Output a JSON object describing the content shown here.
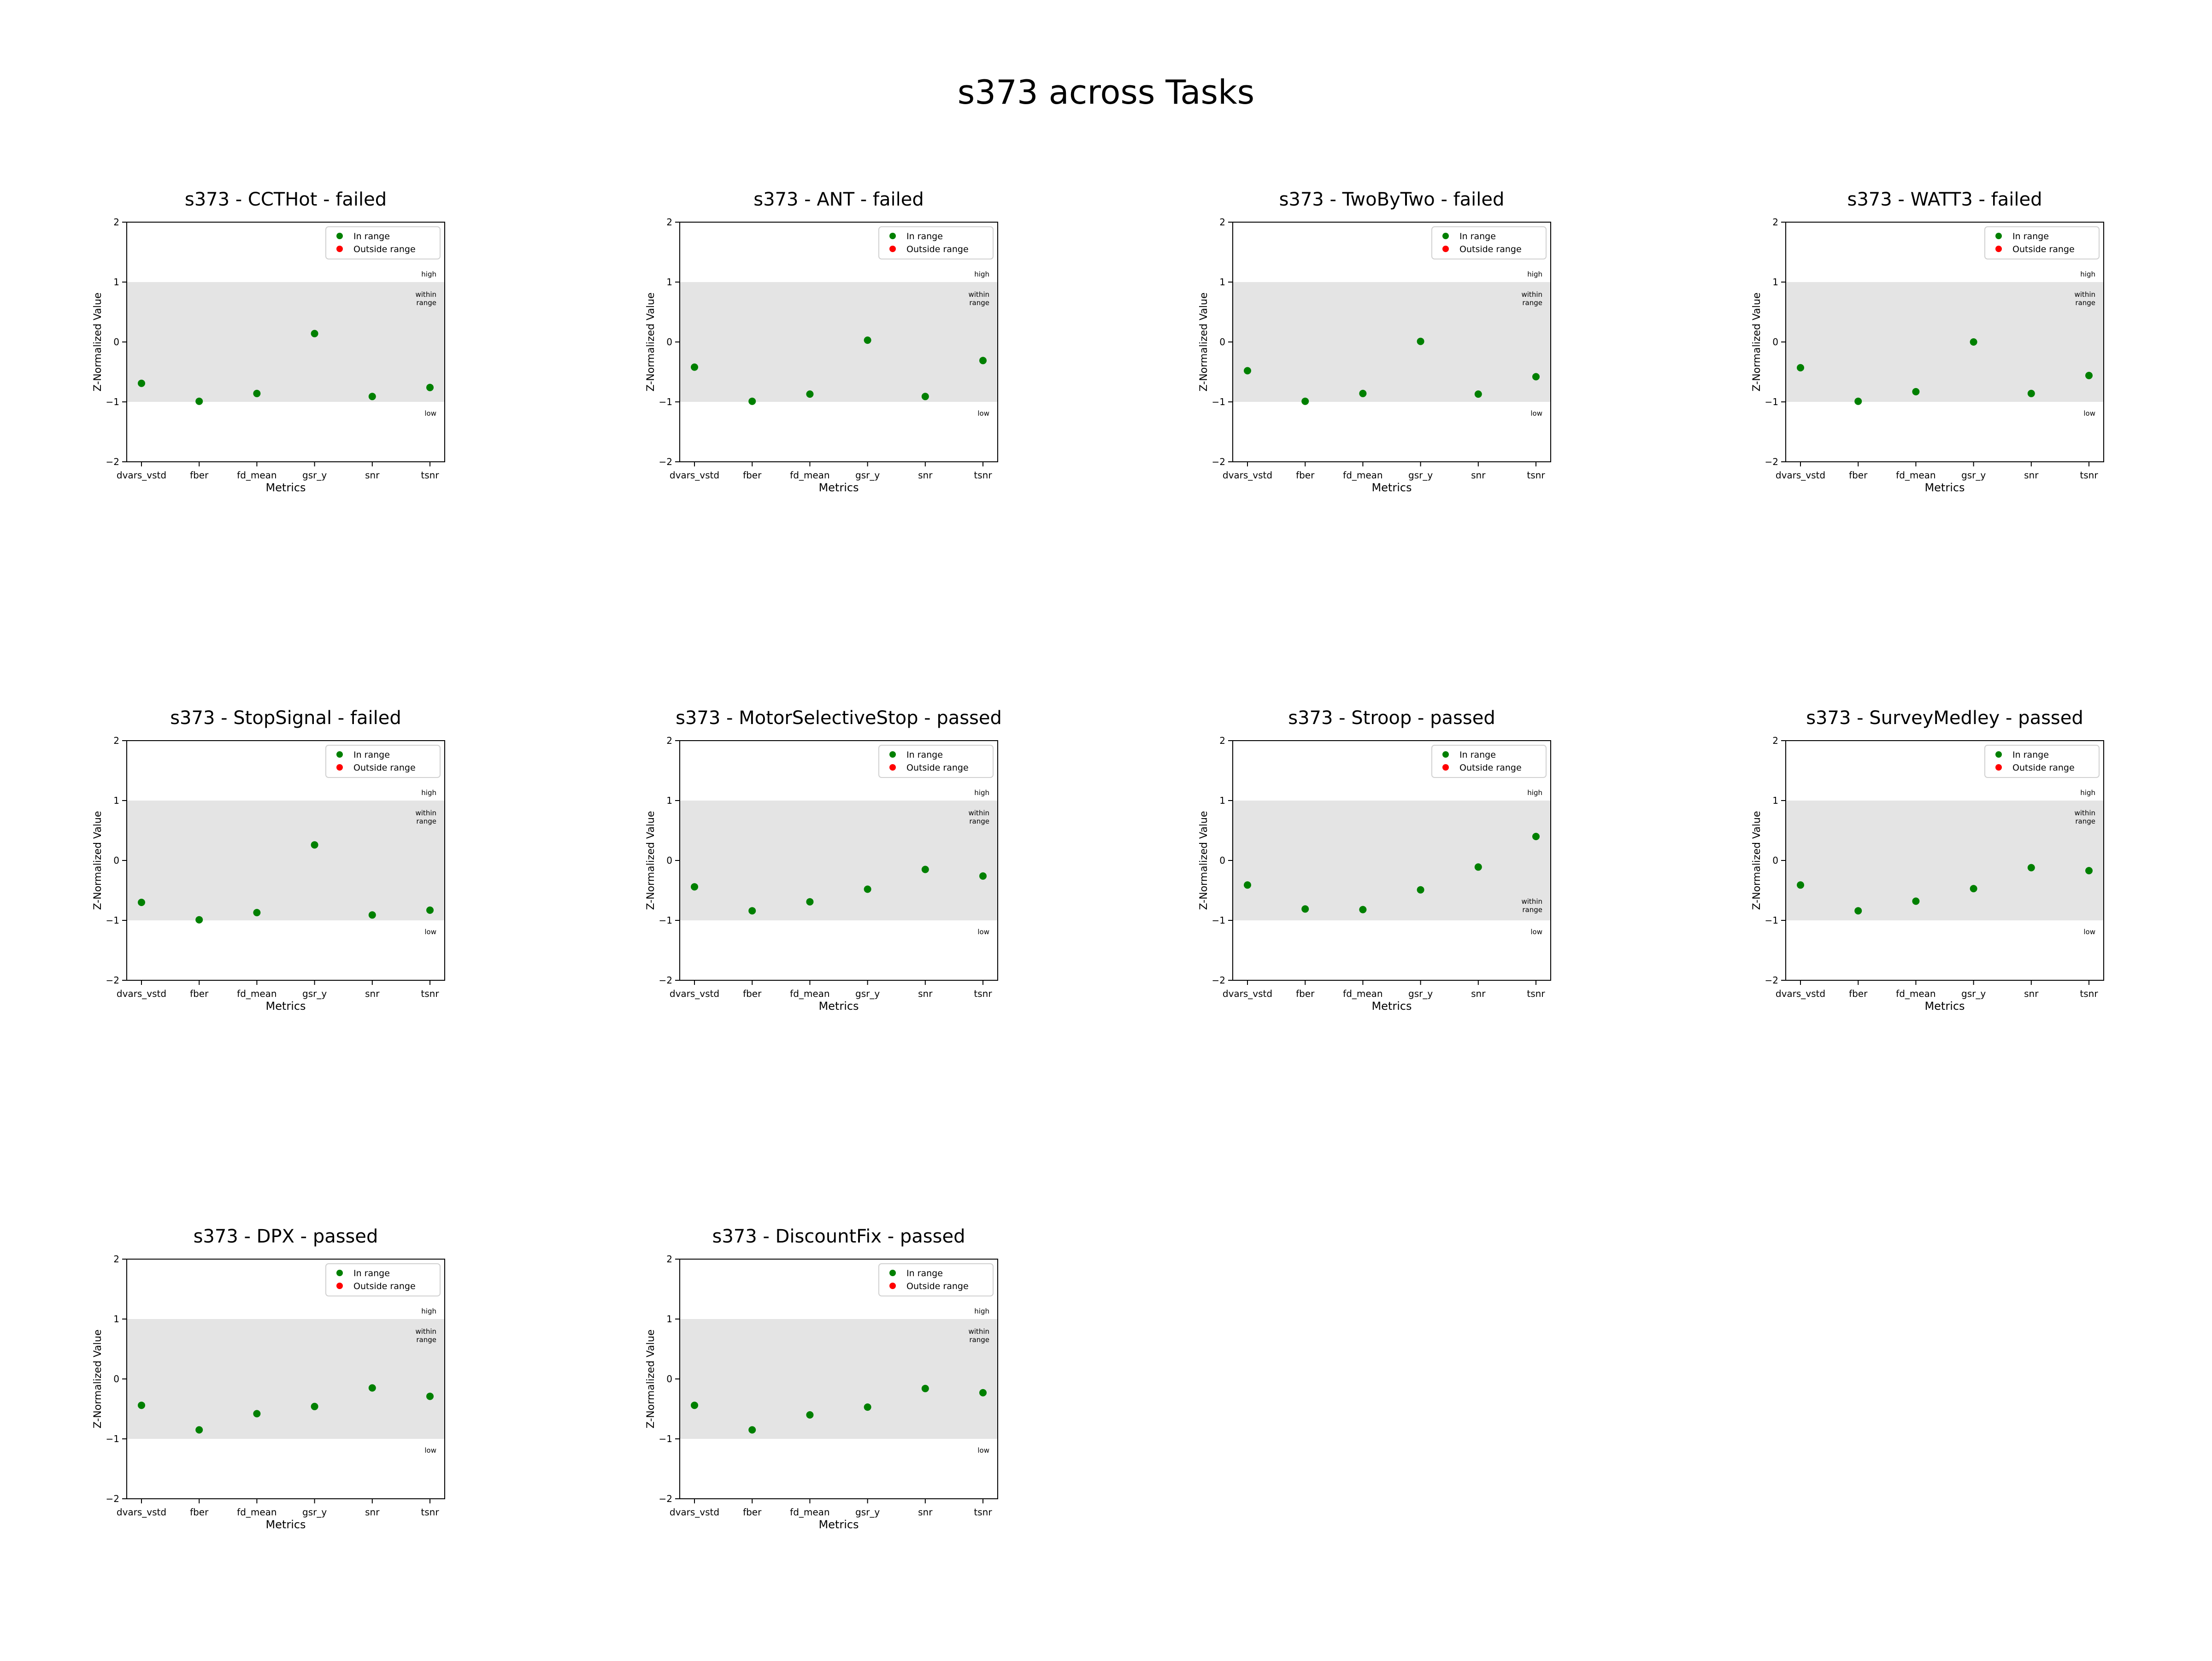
{
  "figure": {
    "title": "s373 across Tasks"
  },
  "chart_data": [
    {
      "type": "scatter",
      "title": "s373 - CCTHot - failed",
      "xlabel": "Metrics",
      "ylabel": "Z-Normalized Value",
      "categories": [
        "dvars_vstd",
        "fber",
        "fd_mean",
        "gsr_y",
        "snr",
        "tsnr"
      ],
      "values": [
        -0.69,
        -0.99,
        -0.86,
        0.14,
        -0.91,
        -0.76
      ],
      "ylim": [
        -2,
        2
      ],
      "yticks": [
        -2,
        -1,
        0,
        1,
        2
      ],
      "shaded_band": [
        -1,
        1
      ],
      "band_labels": {
        "high": "high",
        "within": [
          "within",
          "range"
        ],
        "low": "low"
      },
      "within_label_pos": "top",
      "legend": {
        "placement": "top-right",
        "entries": [
          {
            "label": "In range",
            "color": "#008000"
          },
          {
            "label": "Outside range",
            "color": "#ff0000"
          }
        ]
      },
      "grid": false
    },
    {
      "type": "scatter",
      "title": "s373 - ANT - failed",
      "xlabel": "Metrics",
      "ylabel": "Z-Normalized Value",
      "categories": [
        "dvars_vstd",
        "fber",
        "fd_mean",
        "gsr_y",
        "snr",
        "tsnr"
      ],
      "values": [
        -0.42,
        -0.99,
        -0.87,
        0.03,
        -0.91,
        -0.31
      ],
      "ylim": [
        -2,
        2
      ],
      "yticks": [
        -2,
        -1,
        0,
        1,
        2
      ],
      "shaded_band": [
        -1,
        1
      ],
      "band_labels": {
        "high": "high",
        "within": [
          "within",
          "range"
        ],
        "low": "low"
      },
      "within_label_pos": "top",
      "legend": {
        "placement": "top-right",
        "entries": [
          {
            "label": "In range",
            "color": "#008000"
          },
          {
            "label": "Outside range",
            "color": "#ff0000"
          }
        ]
      },
      "grid": false
    },
    {
      "type": "scatter",
      "title": "s373 - TwoByTwo - failed",
      "xlabel": "Metrics",
      "ylabel": "Z-Normalized Value",
      "categories": [
        "dvars_vstd",
        "fber",
        "fd_mean",
        "gsr_y",
        "snr",
        "tsnr"
      ],
      "values": [
        -0.48,
        -0.99,
        -0.86,
        0.01,
        -0.87,
        -0.58
      ],
      "ylim": [
        -2,
        2
      ],
      "yticks": [
        -2,
        -1,
        0,
        1,
        2
      ],
      "shaded_band": [
        -1,
        1
      ],
      "band_labels": {
        "high": "high",
        "within": [
          "within",
          "range"
        ],
        "low": "low"
      },
      "within_label_pos": "top",
      "legend": {
        "placement": "top-right",
        "entries": [
          {
            "label": "In range",
            "color": "#008000"
          },
          {
            "label": "Outside range",
            "color": "#ff0000"
          }
        ]
      },
      "grid": false
    },
    {
      "type": "scatter",
      "title": "s373 - WATT3 - failed",
      "xlabel": "Metrics",
      "ylabel": "Z-Normalized Value",
      "categories": [
        "dvars_vstd",
        "fber",
        "fd_mean",
        "gsr_y",
        "snr",
        "tsnr"
      ],
      "values": [
        -0.43,
        -0.99,
        -0.83,
        0.0,
        -0.86,
        -0.56
      ],
      "ylim": [
        -2,
        2
      ],
      "yticks": [
        -2,
        -1,
        0,
        1,
        2
      ],
      "shaded_band": [
        -1,
        1
      ],
      "band_labels": {
        "high": "high",
        "within": [
          "within",
          "range"
        ],
        "low": "low"
      },
      "within_label_pos": "top",
      "legend": {
        "placement": "top-right",
        "entries": [
          {
            "label": "In range",
            "color": "#008000"
          },
          {
            "label": "Outside range",
            "color": "#ff0000"
          }
        ]
      },
      "grid": false
    },
    {
      "type": "scatter",
      "title": "s373 - StopSignal - failed",
      "xlabel": "Metrics",
      "ylabel": "Z-Normalized Value",
      "categories": [
        "dvars_vstd",
        "fber",
        "fd_mean",
        "gsr_y",
        "snr",
        "tsnr"
      ],
      "values": [
        -0.7,
        -0.99,
        -0.87,
        0.26,
        -0.91,
        -0.83
      ],
      "ylim": [
        -2,
        2
      ],
      "yticks": [
        -2,
        -1,
        0,
        1,
        2
      ],
      "shaded_band": [
        -1,
        1
      ],
      "band_labels": {
        "high": "high",
        "within": [
          "within",
          "range"
        ],
        "low": "low"
      },
      "within_label_pos": "top",
      "legend": {
        "placement": "top-right",
        "entries": [
          {
            "label": "In range",
            "color": "#008000"
          },
          {
            "label": "Outside range",
            "color": "#ff0000"
          }
        ]
      },
      "grid": false
    },
    {
      "type": "scatter",
      "title": "s373 - MotorSelectiveStop - passed",
      "xlabel": "Metrics",
      "ylabel": "Z-Normalized Value",
      "categories": [
        "dvars_vstd",
        "fber",
        "fd_mean",
        "gsr_y",
        "snr",
        "tsnr"
      ],
      "values": [
        -0.44,
        -0.84,
        -0.69,
        -0.48,
        -0.15,
        -0.26
      ],
      "ylim": [
        -2,
        2
      ],
      "yticks": [
        -2,
        -1,
        0,
        1,
        2
      ],
      "shaded_band": [
        -1,
        1
      ],
      "band_labels": {
        "high": "high",
        "within": [
          "within",
          "range"
        ],
        "low": "low"
      },
      "within_label_pos": "top",
      "legend": {
        "placement": "top-right",
        "entries": [
          {
            "label": "In range",
            "color": "#008000"
          },
          {
            "label": "Outside range",
            "color": "#ff0000"
          }
        ]
      },
      "grid": false
    },
    {
      "type": "scatter",
      "title": "s373 - Stroop - passed",
      "xlabel": "Metrics",
      "ylabel": "Z-Normalized Value",
      "categories": [
        "dvars_vstd",
        "fber",
        "fd_mean",
        "gsr_y",
        "snr",
        "tsnr"
      ],
      "values": [
        -0.41,
        -0.81,
        -0.82,
        -0.49,
        -0.11,
        0.4
      ],
      "ylim": [
        -2,
        2
      ],
      "yticks": [
        -2,
        -1,
        0,
        1,
        2
      ],
      "shaded_band": [
        -1,
        1
      ],
      "band_labels": {
        "high": "high",
        "within": [
          "within",
          "range"
        ],
        "low": "low"
      },
      "within_label_pos": "bottom",
      "legend": {
        "placement": "top-right",
        "entries": [
          {
            "label": "In range",
            "color": "#008000"
          },
          {
            "label": "Outside range",
            "color": "#ff0000"
          }
        ]
      },
      "grid": false
    },
    {
      "type": "scatter",
      "title": "s373 - SurveyMedley - passed",
      "xlabel": "Metrics",
      "ylabel": "Z-Normalized Value",
      "categories": [
        "dvars_vstd",
        "fber",
        "fd_mean",
        "gsr_y",
        "snr",
        "tsnr"
      ],
      "values": [
        -0.41,
        -0.84,
        -0.68,
        -0.47,
        -0.12,
        -0.17
      ],
      "ylim": [
        -2,
        2
      ],
      "yticks": [
        -2,
        -1,
        0,
        1,
        2
      ],
      "shaded_band": [
        -1,
        1
      ],
      "band_labels": {
        "high": "high",
        "within": [
          "within",
          "range"
        ],
        "low": "low"
      },
      "within_label_pos": "top",
      "legend": {
        "placement": "top-right",
        "entries": [
          {
            "label": "In range",
            "color": "#008000"
          },
          {
            "label": "Outside range",
            "color": "#ff0000"
          }
        ]
      },
      "grid": false
    },
    {
      "type": "scatter",
      "title": "s373 - DPX - passed",
      "xlabel": "Metrics",
      "ylabel": "Z-Normalized Value",
      "categories": [
        "dvars_vstd",
        "fber",
        "fd_mean",
        "gsr_y",
        "snr",
        "tsnr"
      ],
      "values": [
        -0.44,
        -0.85,
        -0.58,
        -0.46,
        -0.15,
        -0.29
      ],
      "ylim": [
        -2,
        2
      ],
      "yticks": [
        -2,
        -1,
        0,
        1,
        2
      ],
      "shaded_band": [
        -1,
        1
      ],
      "band_labels": {
        "high": "high",
        "within": [
          "within",
          "range"
        ],
        "low": "low"
      },
      "within_label_pos": "top",
      "legend": {
        "placement": "top-right",
        "entries": [
          {
            "label": "In range",
            "color": "#008000"
          },
          {
            "label": "Outside range",
            "color": "#ff0000"
          }
        ]
      },
      "grid": false
    },
    {
      "type": "scatter",
      "title": "s373 - DiscountFix - passed",
      "xlabel": "Metrics",
      "ylabel": "Z-Normalized Value",
      "categories": [
        "dvars_vstd",
        "fber",
        "fd_mean",
        "gsr_y",
        "snr",
        "tsnr"
      ],
      "values": [
        -0.44,
        -0.85,
        -0.6,
        -0.47,
        -0.16,
        -0.23
      ],
      "ylim": [
        -2,
        2
      ],
      "yticks": [
        -2,
        -1,
        0,
        1,
        2
      ],
      "shaded_band": [
        -1,
        1
      ],
      "band_labels": {
        "high": "high",
        "within": [
          "within",
          "range"
        ],
        "low": "low"
      },
      "within_label_pos": "top",
      "legend": {
        "placement": "top-right",
        "entries": [
          {
            "label": "In range",
            "color": "#008000"
          },
          {
            "label": "Outside range",
            "color": "#ff0000"
          }
        ]
      },
      "grid": false
    }
  ]
}
